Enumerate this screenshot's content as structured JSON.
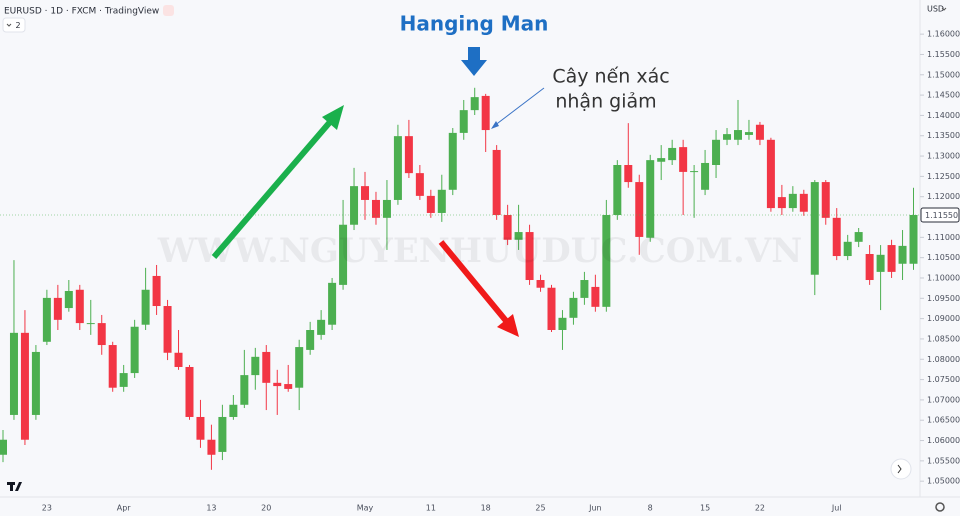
{
  "chart_data": {
    "type": "candlestick",
    "symbol_line": "EURUSD · 1D · FXCM · TradingView",
    "indicator_count": "2",
    "currency": "USD",
    "watermark": "WWW.NGUYENHUUDUC.COM.VN",
    "annotations": {
      "title": "Hanging Man",
      "note_line1": "Cây nến xác",
      "note_line2": "nhận giảm"
    },
    "up_color": "#4caf50",
    "down_color": "#f23645",
    "grid": false,
    "ylim": [
      1.0466,
      1.1684
    ],
    "yticks": [
      {
        "value": 1.16,
        "label": "1.16000"
      },
      {
        "value": 1.155,
        "label": "1.15500"
      },
      {
        "value": 1.15,
        "label": "1.15000"
      },
      {
        "value": 1.145,
        "label": "1.14500"
      },
      {
        "value": 1.14,
        "label": "1.14000"
      },
      {
        "value": 1.135,
        "label": "1.13500"
      },
      {
        "value": 1.13,
        "label": "1.13000"
      },
      {
        "value": 1.125,
        "label": "1.12500"
      },
      {
        "value": 1.12,
        "label": "1.12000"
      },
      {
        "value": 1.11,
        "label": "1.11000"
      },
      {
        "value": 1.105,
        "label": "1.10500"
      },
      {
        "value": 1.1,
        "label": "1.10000"
      },
      {
        "value": 1.095,
        "label": "1.09500"
      },
      {
        "value": 1.09,
        "label": "1.09000"
      },
      {
        "value": 1.085,
        "label": "1.08500"
      },
      {
        "value": 1.08,
        "label": "1.08000"
      },
      {
        "value": 1.075,
        "label": "1.07500"
      },
      {
        "value": 1.07,
        "label": "1.07000"
      },
      {
        "value": 1.065,
        "label": "1.06500"
      },
      {
        "value": 1.06,
        "label": "1.06000"
      },
      {
        "value": 1.055,
        "label": "1.05500"
      },
      {
        "value": 1.05,
        "label": "1.05000"
      }
    ],
    "last_price": {
      "value": 1.1155,
      "label": "1.11550"
    },
    "categories": [
      null,
      null,
      null,
      null,
      "23",
      null,
      null,
      null,
      null,
      null,
      null,
      "Apr",
      null,
      null,
      null,
      null,
      null,
      null,
      null,
      "13",
      null,
      null,
      null,
      null,
      "20",
      null,
      null,
      null,
      null,
      null,
      null,
      null,
      null,
      "May",
      null,
      null,
      null,
      null,
      null,
      "11",
      null,
      null,
      null,
      null,
      "18",
      null,
      null,
      null,
      null,
      "25",
      null,
      null,
      null,
      null,
      "Jun",
      null,
      null,
      null,
      null,
      "8",
      null,
      null,
      null,
      null,
      "15",
      null,
      null,
      null,
      null,
      "22",
      null,
      null,
      null,
      null,
      null,
      null,
      "Jul",
      null,
      null,
      null,
      null,
      null,
      null,
      null
    ],
    "open": [
      1.0565,
      1.0663,
      1.0865,
      1.0663,
      1.0843,
      1.0951,
      1.0926,
      1.0971,
      1.0887,
      1.0889,
      1.0835,
      1.0732,
      1.0766,
      1.0885,
      1.1005,
      1.0931,
      1.0816,
      1.0781,
      1.0658,
      1.0602,
      1.0572,
      1.0658,
      1.0688,
      1.0761,
      1.0818,
      1.0742,
      1.0739,
      1.073,
      1.0823,
      1.086,
      1.0885,
      1.0983,
      1.1131,
      1.1226,
      1.1192,
      1.1148,
      1.1192,
      1.1349,
      1.1258,
      1.1202,
      1.116,
      1.1217,
      1.1357,
      1.1413,
      1.1448,
      1.1315,
      1.1155,
      1.1094,
      1.1113,
      1.0995,
      1.0976,
      1.0872,
      1.0902,
      1.0951,
      1.0978,
      1.0929,
      1.1155,
      1.1278,
      1.1236,
      1.1099,
      1.1286,
      1.129,
      1.1322,
      1.1261,
      1.1217,
      1.1278,
      1.134,
      1.134,
      1.1352,
      1.1377,
      1.134,
      1.1199,
      1.1172,
      1.1207,
      1.1008,
      1.1236,
      1.1148,
      1.1054,
      1.1089,
      1.1059,
      1.1015,
      1.1081,
      1.1035,
      1.1035
    ],
    "high": [
      1.0626,
      1.1044,
      1.0921,
      1.0835,
      1.0971,
      1.0983,
      1.0995,
      1.0983,
      1.0946,
      1.0909,
      1.0843,
      1.0786,
      1.0897,
      1.1025,
      1.1032,
      1.0946,
      1.0872,
      1.0786,
      1.07,
      1.0639,
      1.0688,
      1.0712,
      1.0823,
      1.0828,
      1.0835,
      1.0774,
      1.0786,
      1.0848,
      1.0892,
      1.0921,
      1.1,
      1.1192,
      1.1271,
      1.1261,
      1.1212,
      1.1241,
      1.1377,
      1.1389,
      1.1278,
      1.1217,
      1.1254,
      1.1369,
      1.1438,
      1.1468,
      1.1453,
      1.1327,
      1.118,
      1.118,
      1.1131,
      1.1008,
      1.0983,
      1.0921,
      1.0966,
      1.1015,
      1.1008,
      1.1192,
      1.129,
      1.1381,
      1.1254,
      1.1303,
      1.1327,
      1.134,
      1.134,
      1.1278,
      1.1315,
      1.1364,
      1.1369,
      1.1438,
      1.1389,
      1.1384,
      1.1345,
      1.1229,
      1.1226,
      1.1217,
      1.1241,
      1.1241,
      1.1172,
      1.1106,
      1.1123,
      1.1081,
      1.1081,
      1.1094,
      1.1118,
      1.1222
    ],
    "low": [
      1.0547,
      1.0651,
      1.0589,
      1.0651,
      1.0835,
      1.0872,
      1.0917,
      1.0872,
      1.086,
      1.0811,
      1.072,
      1.072,
      1.0754,
      1.0872,
      1.0909,
      1.0798,
      1.0774,
      1.0651,
      1.0582,
      1.0528,
      1.0552,
      1.0651,
      1.068,
      1.0725,
      1.0675,
      1.0663,
      1.072,
      1.0675,
      1.0811,
      1.0848,
      1.0872,
      1.0971,
      1.1118,
      1.1143,
      1.1131,
      1.1069,
      1.118,
      1.1246,
      1.1192,
      1.1148,
      1.1138,
      1.1204,
      1.134,
      1.1401,
      1.131,
      1.1143,
      1.1081,
      1.1069,
      1.0983,
      1.0966,
      1.0867,
      1.0823,
      1.0885,
      1.0934,
      1.0917,
      1.0917,
      1.1143,
      1.1222,
      1.1057,
      1.1089,
      1.1241,
      1.1278,
      1.1155,
      1.1148,
      1.1204,
      1.1246,
      1.1327,
      1.1327,
      1.134,
      1.1327,
      1.1163,
      1.1155,
      1.1163,
      1.1153,
      1.0958,
      1.1131,
      1.1044,
      1.1044,
      1.1076,
      1.0983,
      1.0921,
      1.1,
      1.0995,
      1.102
    ],
    "close": [
      1.0602,
      1.0865,
      1.0602,
      1.0818,
      1.0951,
      1.0897,
      1.0968,
      1.0889,
      1.0889,
      1.0835,
      1.073,
      1.0766,
      1.088,
      1.0971,
      1.0931,
      1.0816,
      1.0781,
      1.0658,
      1.0602,
      1.0565,
      1.0658,
      1.0688,
      1.0761,
      1.0806,
      1.0742,
      1.0734,
      1.0727,
      1.083,
      1.0872,
      1.0897,
      1.0988,
      1.1131,
      1.1226,
      1.1192,
      1.1148,
      1.1192,
      1.1349,
      1.1258,
      1.1202,
      1.116,
      1.1217,
      1.1357,
      1.1413,
      1.1445,
      1.1364,
      1.1155,
      1.1094,
      1.1113,
      1.0995,
      1.0976,
      1.0872,
      1.0902,
      1.0951,
      1.0995,
      1.0929,
      1.1155,
      1.1278,
      1.1236,
      1.1101,
      1.129,
      1.1295,
      1.132,
      1.1261,
      1.1263,
      1.1283,
      1.134,
      1.1354,
      1.1364,
      1.1359,
      1.134,
      1.1172,
      1.1172,
      1.1207,
      1.1163,
      1.1236,
      1.1148,
      1.1054,
      1.1089,
      1.1113,
      1.0995,
      1.1057,
      1.1015,
      1.1079,
      1.1155
    ]
  }
}
